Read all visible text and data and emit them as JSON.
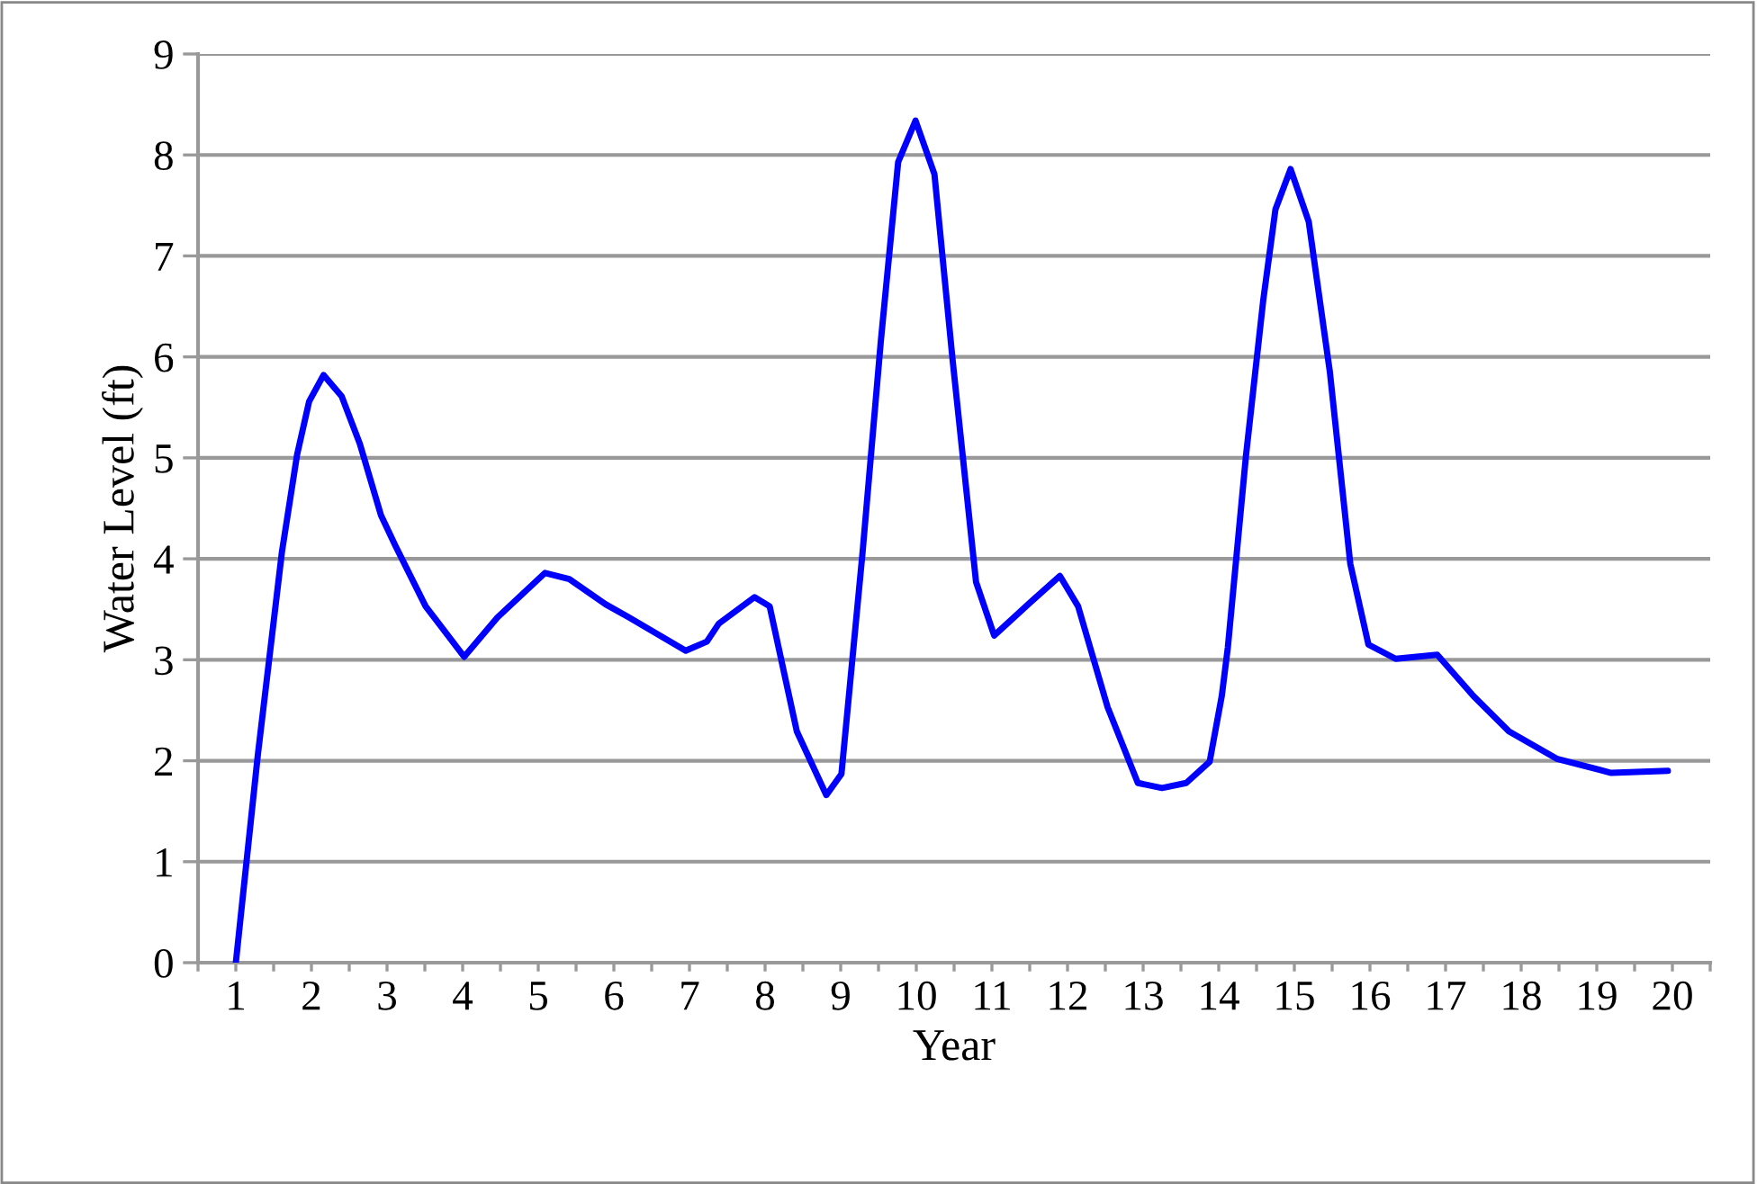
{
  "chart_data": {
    "type": "line",
    "xlabel": "Year",
    "ylabel": "Water Level (ft)",
    "xlim": [
      0.5,
      20.5
    ],
    "xticks": [
      {
        "value": 0.5,
        "label": null
      },
      1,
      {
        "value": 1.5,
        "label": null
      },
      2,
      {
        "value": 2.5,
        "label": null
      },
      3,
      {
        "value": 3.5,
        "label": null
      },
      4,
      {
        "value": 4.5,
        "label": null
      },
      5,
      {
        "value": 5.5,
        "label": null
      },
      6,
      {
        "value": 6.5,
        "label": null
      },
      7,
      {
        "value": 7.5,
        "label": null
      },
      8,
      {
        "value": 8.5,
        "label": null
      },
      9,
      {
        "value": 9.5,
        "label": null
      },
      10,
      {
        "value": 10.5,
        "label": null
      },
      11,
      {
        "value": 11.5,
        "label": null
      },
      12,
      {
        "value": 12.5,
        "label": null
      },
      13,
      {
        "value": 13.5,
        "label": null
      },
      14,
      {
        "value": 14.5,
        "label": null
      },
      15,
      {
        "value": 15.5,
        "label": null
      },
      16,
      {
        "value": 16.5,
        "label": null
      },
      17,
      {
        "value": 17.5,
        "label": null
      },
      18,
      {
        "value": 18.5,
        "label": null
      },
      19,
      {
        "value": 19.5,
        "label": null
      },
      20,
      {
        "value": 20.5,
        "label": null
      }
    ],
    "ylim": [
      0,
      9
    ],
    "yticks": [
      0,
      1,
      2,
      3,
      4,
      5,
      6,
      7,
      8,
      9
    ],
    "grid": "y",
    "marker": "none",
    "line_style": "solid",
    "series": [
      {
        "color": "#0000ff",
        "x": [
          1.0,
          1.29,
          1.61,
          1.81,
          1.97,
          2.16,
          2.4,
          2.64,
          2.92,
          3.11,
          3.51,
          4.02,
          4.46,
          5.09,
          5.41,
          5.89,
          6.2,
          6.95,
          7.23,
          7.39,
          7.86,
          8.06,
          8.42,
          8.81,
          9.01,
          9.29,
          9.53,
          9.76,
          9.99,
          10.24,
          10.48,
          10.79,
          11.03,
          11.51,
          11.9,
          12.14,
          12.53,
          12.93,
          13.25,
          13.57,
          13.88,
          14.04,
          14.12,
          14.36,
          14.59,
          14.75,
          14.95,
          15.19,
          15.47,
          15.74,
          15.98,
          16.34,
          16.89,
          17.37,
          17.84,
          18.47,
          19.19,
          19.94
        ],
        "values": [
          0,
          2.05,
          4.07,
          5.03,
          5.56,
          5.82,
          5.61,
          5.14,
          4.43,
          4.13,
          3.53,
          3.03,
          3.42,
          3.86,
          3.8,
          3.55,
          3.42,
          3.09,
          3.18,
          3.36,
          3.62,
          3.53,
          2.29,
          1.66,
          1.87,
          4.07,
          6.15,
          7.93,
          8.34,
          7.81,
          5.97,
          3.77,
          3.24,
          3.57,
          3.83,
          3.53,
          2.53,
          1.78,
          1.73,
          1.78,
          1.99,
          2.64,
          3.12,
          5.02,
          6.57,
          7.46,
          7.86,
          7.34,
          5.85,
          3.95,
          3.15,
          3.01,
          3.05,
          2.64,
          2.29,
          2.02,
          1.88,
          1.9
        ]
      }
    ]
  }
}
